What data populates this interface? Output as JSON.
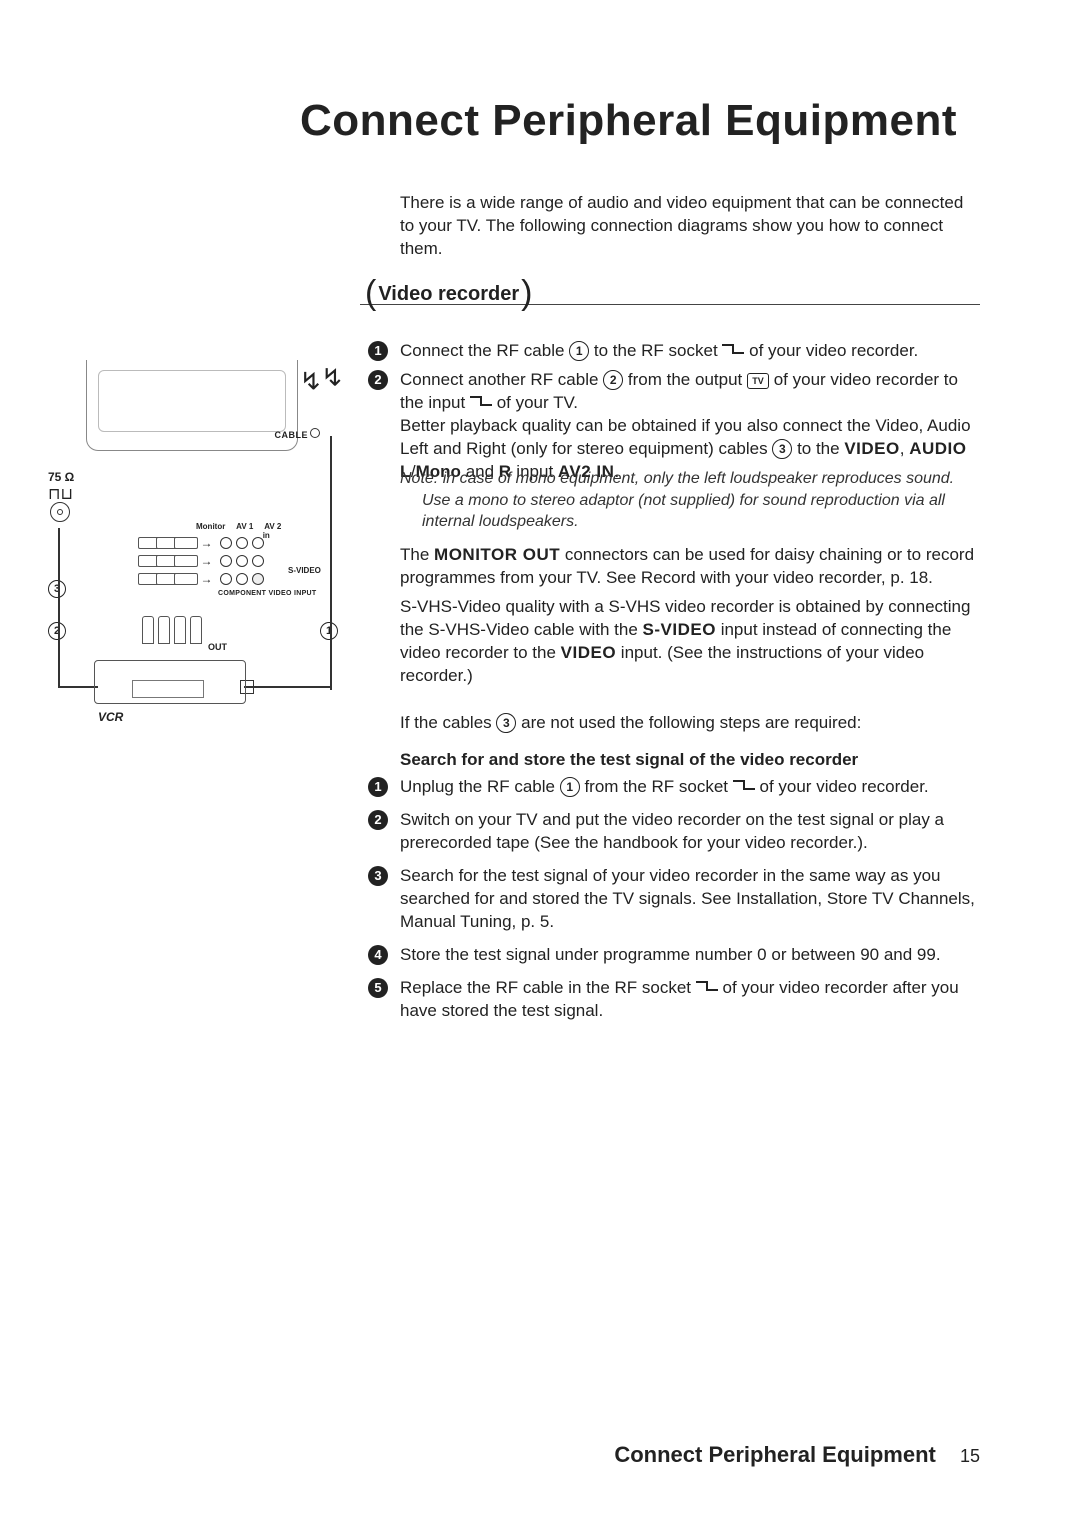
{
  "page": {
    "title": "Connect Peripheral Equipment",
    "intro": "There is a wide range of audio and video equipment that can be connected to your TV. The following connection diagrams show you how to connect them.",
    "footer_title": "Connect Peripheral Equipment",
    "page_number": "15",
    "text_color": "#222222",
    "bg_color": "#ffffff"
  },
  "section": {
    "label": "Video recorder"
  },
  "diagram": {
    "cable_label": "CABLE",
    "impedance": "75 Ω",
    "monitor_label": "Monitor",
    "av1_label": "AV 1",
    "av2_label": "AV 2",
    "in_label": "in",
    "svideo_label": "S-VIDEO",
    "cvi_label": "COMPONENT VIDEO INPUT",
    "out_label": "OUT",
    "vcr_label": "VCR",
    "ref1": "1",
    "ref2": "2",
    "ref3": "3"
  },
  "stepsA": {
    "s1": {
      "num": "1",
      "pre": "Connect the RF cable ",
      "ref": "1",
      "mid": " to the RF socket ",
      "post": " of your video recorder."
    },
    "s2": {
      "num": "2",
      "pre": "Connect another RF cable ",
      "ref": "2",
      "mid": " from the output ",
      "tv": "TV",
      "mid2": " of your video recorder to the input ",
      "post": " of your TV.",
      "line2a": "Better playback quality can be obtained if you also connect the Video, Audio Left and Right (only for stereo equipment) cables ",
      "ref2": "3",
      "line2b": " to the ",
      "kw_video": "VIDEO",
      "comma": ", ",
      "kw_audio_l": "AUDIO L",
      "slash": "/",
      "kw_mono": "Mono",
      "and": " and ",
      "kw_r": "R",
      "inputword": " input ",
      "kw_av2in": "AV2 IN",
      "dot": "."
    }
  },
  "note": {
    "lead": "Note: in case of mono equipment, only the left loudspeaker reproduces sound.",
    "body": "Use a mono to stereo adaptor (not supplied) for sound reproduction via all internal loudspeakers."
  },
  "para1": {
    "pre": "The ",
    "kw": "MONITOR OUT",
    "post": " connectors can be used for daisy chaining or to record programmes from your TV.  See Record with your video recorder, p. 18."
  },
  "para2": {
    "pre": "S-VHS-Video quality with a S-VHS video recorder is obtained by connecting the S-VHS-Video cable with the ",
    "kw1": "S-VIDEO",
    "mid": " input instead of connecting the video recorder to the ",
    "kw2": "VIDEO",
    "post": " input. (See the instructions of your video recorder.)"
  },
  "para3": {
    "pre": "If the cables ",
    "ref": "3",
    "post": " are not used the following steps are required:"
  },
  "subheader": "Search for and store the test signal of the video recorder",
  "stepsB": {
    "s1": {
      "num": "1",
      "pre": "Unplug the RF cable ",
      "ref": "1",
      "mid": " from the RF socket ",
      "post": " of your video recorder."
    },
    "s2": {
      "num": "2",
      "txt": "Switch on your TV and put the video recorder on the test signal or play a prerecorded tape (See the handbook for your video recorder.)."
    },
    "s3": {
      "num": "3",
      "txt": "Search for the test signal of your video recorder in the same way as you searched for and stored the TV signals. See Installation, Store TV Channels, Manual Tuning, p. 5."
    },
    "s4": {
      "num": "4",
      "txt": "Store the test signal under programme number 0 or between 90 and 99."
    },
    "s5": {
      "num": "5",
      "pre": "Replace the RF cable in the RF socket ",
      "post": " of your video recorder after you have stored the test signal."
    }
  }
}
